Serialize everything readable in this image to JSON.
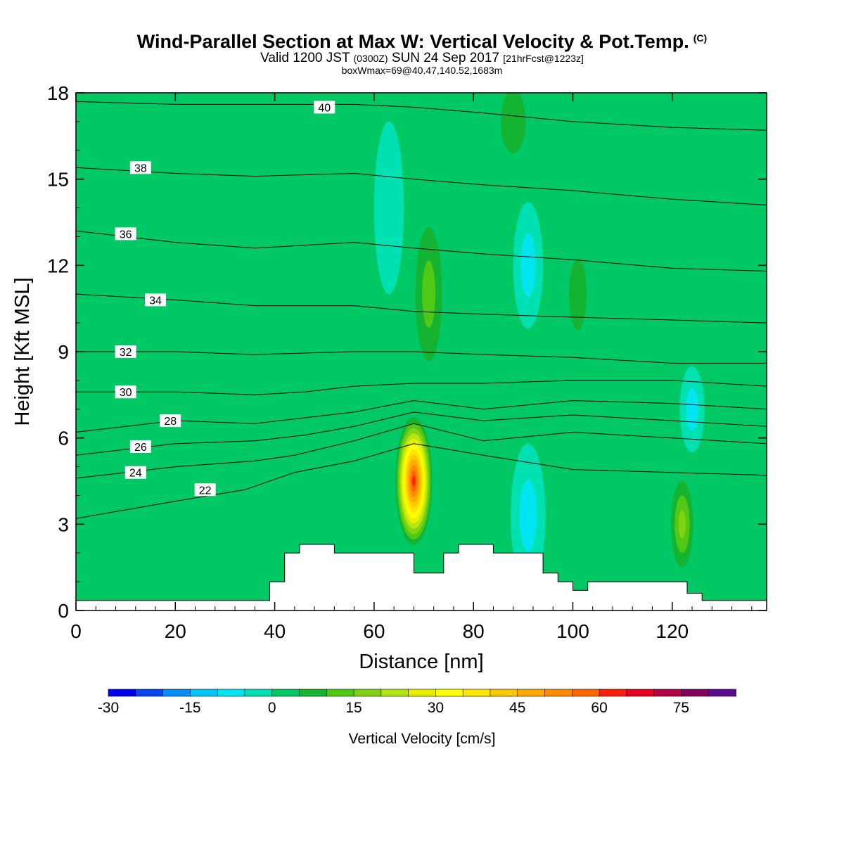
{
  "header": {
    "title": "Wind-Parallel Section at Max W: Vertical Velocity & Pot.Temp.",
    "copyright": "(C)",
    "valid_prefix": "Valid 1200 JST",
    "valid_utc": "(0300Z)",
    "valid_date": "SUN 24 Sep 2017",
    "forecast_info": "[21hrFcst@1223z]",
    "box_info": "boxWmax=69@40.47,140.52,1683m"
  },
  "colorbar": {
    "label": "Vertical Velocity [cm/s]",
    "tick_labels": [
      "-30",
      "-15",
      "0",
      "15",
      "30",
      "45",
      "60",
      "75"
    ],
    "ticks": [
      -30,
      -15,
      0,
      15,
      30,
      45,
      60,
      75
    ],
    "min": -30,
    "max": 85,
    "step": 5,
    "colors": [
      "#0000ee",
      "#0a46f0",
      "#0a8cf5",
      "#00c8ff",
      "#00e6f0",
      "#00e0b0",
      "#00c864",
      "#14b432",
      "#50c814",
      "#82d214",
      "#b4e614",
      "#e6f000",
      "#ffff00",
      "#ffe600",
      "#ffc800",
      "#ffaa00",
      "#ff8c00",
      "#ff6400",
      "#ff1e0a",
      "#e6001e",
      "#b40046",
      "#82005a",
      "#5a0a8c"
    ]
  },
  "chart_data": {
    "type": "heatmap",
    "title": "Wind-Parallel Section at Max W: Vertical Velocity & Pot.Temp.",
    "xlabel": "Distance [nm]",
    "ylabel": "Height [Kft MSL]",
    "xlim": [
      0,
      139
    ],
    "ylim": [
      0,
      18
    ],
    "x_ticks": [
      0,
      20,
      40,
      60,
      80,
      100,
      120
    ],
    "y_ticks": [
      0,
      3,
      6,
      9,
      12,
      15,
      18
    ],
    "shaded_field": "Vertical Velocity [cm/s]",
    "background_value": 0,
    "features": [
      {
        "x": 68,
        "y": 4.5,
        "rx": 4,
        "ry": 2.4,
        "value": 69
      },
      {
        "x": 71,
        "y": 11,
        "rx": 4,
        "ry": 3.5,
        "value": 15
      },
      {
        "x": 88,
        "y": 17,
        "rx": 5,
        "ry": 2.2,
        "value": 12
      },
      {
        "x": 101,
        "y": 11,
        "rx": 3.5,
        "ry": 2.5,
        "value": 14
      },
      {
        "x": 122,
        "y": 3,
        "rx": 3,
        "ry": 2,
        "value": 24
      },
      {
        "x": 91,
        "y": 3.3,
        "rx": 3.5,
        "ry": 2.5,
        "value": -12
      },
      {
        "x": 91,
        "y": 12,
        "rx": 3,
        "ry": 2.2,
        "value": -12
      },
      {
        "x": 63,
        "y": 14,
        "rx": 3,
        "ry": 3,
        "value": -6
      },
      {
        "x": 124,
        "y": 7,
        "rx": 2.5,
        "ry": 1.5,
        "value": -10
      }
    ],
    "contour_field": "Potential Temperature",
    "contours": [
      {
        "value": 22,
        "label_at": [
          26,
          4.2
        ],
        "points": [
          [
            0,
            3.2
          ],
          [
            20,
            3.8
          ],
          [
            34,
            4.2
          ],
          [
            44,
            4.8
          ],
          [
            56,
            5.2
          ],
          [
            68,
            5.8
          ],
          [
            82,
            5.4
          ],
          [
            100,
            4.9
          ],
          [
            120,
            4.8
          ],
          [
            139,
            4.7
          ]
        ]
      },
      {
        "value": 24,
        "label_at": [
          12,
          4.8
        ],
        "points": [
          [
            0,
            4.6
          ],
          [
            20,
            5.0
          ],
          [
            36,
            5.2
          ],
          [
            44,
            5.4
          ],
          [
            56,
            5.9
          ],
          [
            68,
            6.5
          ],
          [
            82,
            5.9
          ],
          [
            100,
            6.2
          ],
          [
            120,
            6.0
          ],
          [
            139,
            5.8
          ]
        ]
      },
      {
        "value": 26,
        "label_at": [
          13,
          5.7
        ],
        "points": [
          [
            0,
            5.4
          ],
          [
            20,
            5.8
          ],
          [
            36,
            5.9
          ],
          [
            46,
            6.1
          ],
          [
            56,
            6.4
          ],
          [
            68,
            6.9
          ],
          [
            82,
            6.6
          ],
          [
            100,
            6.8
          ],
          [
            120,
            6.6
          ],
          [
            139,
            6.4
          ]
        ]
      },
      {
        "value": 28,
        "label_at": [
          19,
          6.6
        ],
        "points": [
          [
            0,
            6.2
          ],
          [
            20,
            6.6
          ],
          [
            36,
            6.5
          ],
          [
            46,
            6.7
          ],
          [
            56,
            6.9
          ],
          [
            68,
            7.3
          ],
          [
            82,
            7.0
          ],
          [
            100,
            7.3
          ],
          [
            120,
            7.2
          ],
          [
            139,
            7.0
          ]
        ]
      },
      {
        "value": 30,
        "label_at": [
          10,
          7.6
        ],
        "points": [
          [
            0,
            7.6
          ],
          [
            20,
            7.6
          ],
          [
            36,
            7.5
          ],
          [
            46,
            7.6
          ],
          [
            56,
            7.8
          ],
          [
            68,
            7.9
          ],
          [
            82,
            7.9
          ],
          [
            100,
            8.0
          ],
          [
            120,
            8.0
          ],
          [
            139,
            7.8
          ]
        ]
      },
      {
        "value": 32,
        "label_at": [
          10,
          9.0
        ],
        "points": [
          [
            0,
            9.0
          ],
          [
            20,
            9.0
          ],
          [
            36,
            8.9
          ],
          [
            56,
            9.0
          ],
          [
            68,
            9.0
          ],
          [
            82,
            8.9
          ],
          [
            100,
            8.8
          ],
          [
            120,
            8.6
          ],
          [
            139,
            8.6
          ]
        ]
      },
      {
        "value": 34,
        "label_at": [
          16,
          10.8
        ],
        "points": [
          [
            0,
            11.0
          ],
          [
            20,
            10.8
          ],
          [
            36,
            10.6
          ],
          [
            56,
            10.6
          ],
          [
            68,
            10.4
          ],
          [
            82,
            10.3
          ],
          [
            100,
            10.2
          ],
          [
            120,
            10.1
          ],
          [
            139,
            10.0
          ]
        ]
      },
      {
        "value": 36,
        "label_at": [
          10,
          13.1
        ],
        "points": [
          [
            0,
            13.2
          ],
          [
            20,
            12.8
          ],
          [
            36,
            12.6
          ],
          [
            56,
            12.8
          ],
          [
            68,
            12.6
          ],
          [
            82,
            12.4
          ],
          [
            100,
            12.2
          ],
          [
            120,
            11.9
          ],
          [
            139,
            11.8
          ]
        ]
      },
      {
        "value": 38,
        "label_at": [
          13,
          15.4
        ],
        "points": [
          [
            0,
            15.4
          ],
          [
            20,
            15.2
          ],
          [
            36,
            15.1
          ],
          [
            56,
            15.2
          ],
          [
            68,
            15.0
          ],
          [
            82,
            14.8
          ],
          [
            100,
            14.6
          ],
          [
            120,
            14.3
          ],
          [
            139,
            14.1
          ]
        ]
      },
      {
        "value": 40,
        "label_at": [
          50,
          17.5
        ],
        "points": [
          [
            0,
            17.7
          ],
          [
            20,
            17.6
          ],
          [
            40,
            17.6
          ],
          [
            56,
            17.6
          ],
          [
            68,
            17.5
          ],
          [
            82,
            17.3
          ],
          [
            100,
            17.0
          ],
          [
            120,
            16.8
          ],
          [
            139,
            16.7
          ]
        ]
      }
    ],
    "terrain_kft": [
      [
        0,
        0.35
      ],
      [
        39,
        0.35
      ],
      [
        39,
        1.0
      ],
      [
        42,
        1.0
      ],
      [
        42,
        2.0
      ],
      [
        45,
        2.0
      ],
      [
        45,
        2.3
      ],
      [
        52,
        2.3
      ],
      [
        52,
        2.0
      ],
      [
        68,
        2.0
      ],
      [
        68,
        1.3
      ],
      [
        74,
        1.3
      ],
      [
        74,
        2.0
      ],
      [
        77,
        2.0
      ],
      [
        77,
        2.3
      ],
      [
        84,
        2.3
      ],
      [
        84,
        2.0
      ],
      [
        94,
        2.0
      ],
      [
        94,
        1.3
      ],
      [
        97,
        1.3
      ],
      [
        97,
        1.0
      ],
      [
        100,
        1.0
      ],
      [
        100,
        0.7
      ],
      [
        103,
        0.7
      ],
      [
        103,
        1.0
      ],
      [
        123,
        1.0
      ],
      [
        123,
        0.6
      ],
      [
        126,
        0.6
      ],
      [
        126,
        0.35
      ],
      [
        139,
        0.35
      ]
    ]
  }
}
